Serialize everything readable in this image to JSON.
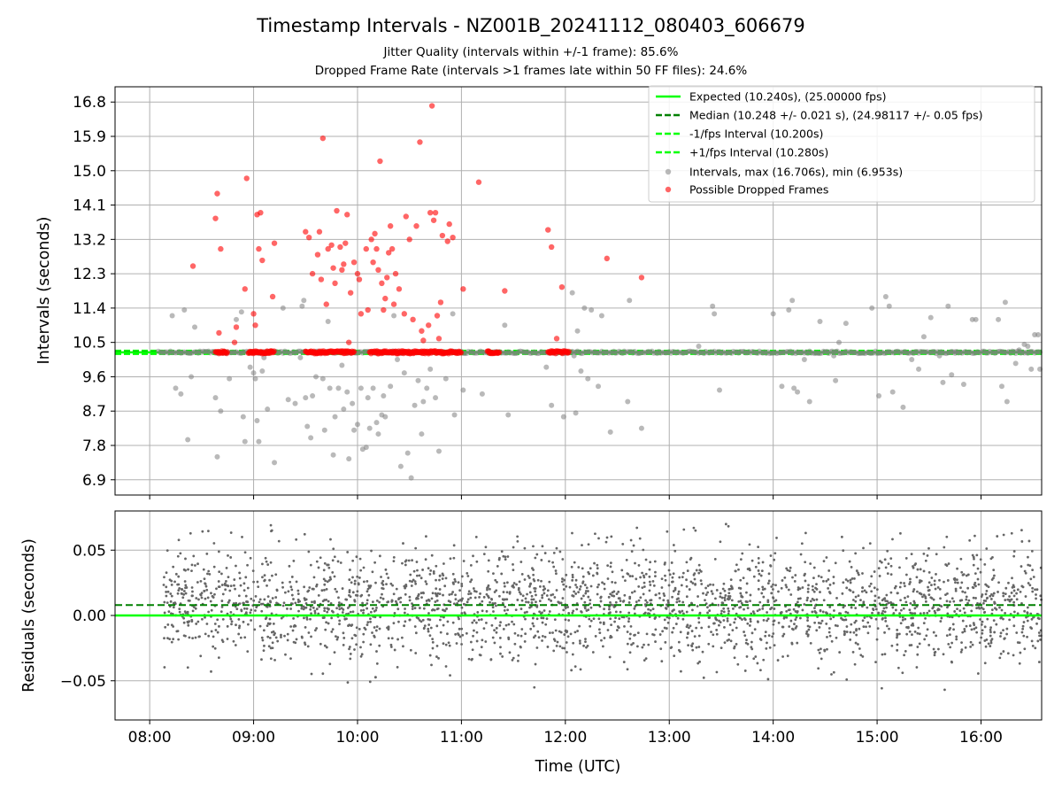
{
  "colors": {
    "expected": "#00ff00",
    "median": "#008000",
    "interval": "#00ff00",
    "points": "#808080",
    "dropped": "#ff0000",
    "grid": "#b0b0b0",
    "residual_points": "#666666"
  },
  "chart_data": [
    {
      "type": "scatter",
      "panel": "intervals",
      "title": "Timestamp Intervals - NZ001B_20241112_080403_606679",
      "subtitle_lines": [
        "Jitter Quality (intervals within +/-1 frame): 85.6%",
        "Dropped Frame Rate (intervals >1 frames late within 50 FF files): 24.6%"
      ],
      "xlabel": "",
      "ylabel": "Intervals (seconds)",
      "xlim": [
        "07:40",
        "16:35"
      ],
      "ylim": [
        6.5,
        17.2
      ],
      "yticks": [
        "6.9",
        "7.8",
        "8.7",
        "9.6",
        "10.5",
        "11.4",
        "12.3",
        "13.2",
        "14.1",
        "15.0",
        "15.9",
        "16.8"
      ],
      "grid": true,
      "legend_position": "top-right",
      "legend": [
        "Expected (10.240s), (25.00000 fps)",
        "Median (10.248 +/- 0.021 s), (24.98117 +/- 0.05 fps)",
        "-1/fps Interval (10.200s)",
        "+1/fps Interval (10.280s)",
        "Intervals, max (16.706s), min (6.953s)",
        "Possible Dropped Frames"
      ],
      "reference_lines": {
        "expected": 10.24,
        "median": 10.248,
        "minus_one": 10.2,
        "plus_one": 10.28
      },
      "baseline_band": {
        "series": "Intervals",
        "x_start": "08:05",
        "x_end": "16:35",
        "y": 10.24
      },
      "dropped_band_segments": [
        [
          "08:38",
          "08:45"
        ],
        [
          "08:57",
          "09:12"
        ],
        [
          "09:30",
          "09:58"
        ],
        [
          "10:07",
          "11:00"
        ],
        [
          "11:15",
          "11:22"
        ],
        [
          "11:50",
          "12:02"
        ]
      ],
      "series": [
        {
          "name": "Intervals, max (16.706s), min (6.953s)",
          "points": [
            [
              "08:13",
              11.2
            ],
            [
              "08:15",
              9.3
            ],
            [
              "08:18",
              9.15
            ],
            [
              "08:20",
              11.35
            ],
            [
              "08:22",
              7.95
            ],
            [
              "08:24",
              9.6
            ],
            [
              "08:26",
              10.9
            ],
            [
              "08:38",
              9.05
            ],
            [
              "08:39",
              7.5
            ],
            [
              "08:41",
              8.7
            ],
            [
              "08:46",
              9.55
            ],
            [
              "08:50",
              11.1
            ],
            [
              "08:53",
              11.3
            ],
            [
              "08:54",
              8.55
            ],
            [
              "08:55",
              7.9
            ],
            [
              "08:58",
              9.85
            ],
            [
              "09:00",
              9.7
            ],
            [
              "09:01",
              9.55
            ],
            [
              "09:02",
              8.45
            ],
            [
              "09:03",
              7.9
            ],
            [
              "09:05",
              9.75
            ],
            [
              "09:06",
              10.1
            ],
            [
              "09:08",
              8.75
            ],
            [
              "09:12",
              7.35
            ],
            [
              "09:17",
              11.4
            ],
            [
              "09:20",
              9.0
            ],
            [
              "09:24",
              8.9
            ],
            [
              "09:27",
              10.1
            ],
            [
              "09:28",
              11.45
            ],
            [
              "09:29",
              11.6
            ],
            [
              "09:30",
              9.05
            ],
            [
              "09:31",
              8.3
            ],
            [
              "09:33",
              8.0
            ],
            [
              "09:34",
              9.1
            ],
            [
              "09:36",
              9.6
            ],
            [
              "09:38",
              10.25
            ],
            [
              "09:40",
              9.55
            ],
            [
              "09:41",
              8.2
            ],
            [
              "09:43",
              11.05
            ],
            [
              "09:44",
              9.3
            ],
            [
              "09:46",
              7.55
            ],
            [
              "09:47",
              8.55
            ],
            [
              "09:49",
              9.3
            ],
            [
              "09:51",
              9.9
            ],
            [
              "09:52",
              8.75
            ],
            [
              "09:54",
              9.2
            ],
            [
              "09:55",
              7.45
            ],
            [
              "09:57",
              8.9
            ],
            [
              "09:58",
              8.2
            ],
            [
              "10:00",
              8.35
            ],
            [
              "10:02",
              9.3
            ],
            [
              "10:03",
              7.7
            ],
            [
              "10:05",
              7.75
            ],
            [
              "10:06",
              9.05
            ],
            [
              "10:07",
              8.25
            ],
            [
              "10:09",
              9.3
            ],
            [
              "10:11",
              8.4
            ],
            [
              "10:12",
              8.1
            ],
            [
              "10:14",
              8.6
            ],
            [
              "10:15",
              9.1
            ],
            [
              "10:16",
              8.55
            ],
            [
              "10:19",
              9.35
            ],
            [
              "10:21",
              11.2
            ],
            [
              "10:23",
              10.05
            ],
            [
              "10:25",
              7.25
            ],
            [
              "10:27",
              9.7
            ],
            [
              "10:29",
              7.6
            ],
            [
              "10:31",
              6.95
            ],
            [
              "10:33",
              8.85
            ],
            [
              "10:35",
              9.5
            ],
            [
              "10:37",
              8.1
            ],
            [
              "10:38",
              8.95
            ],
            [
              "10:40",
              9.3
            ],
            [
              "10:42",
              9.8
            ],
            [
              "10:45",
              9.05
            ],
            [
              "10:47",
              7.65
            ],
            [
              "10:51",
              9.55
            ],
            [
              "10:55",
              11.25
            ],
            [
              "10:56",
              8.6
            ],
            [
              "11:01",
              9.25
            ],
            [
              "11:12",
              9.15
            ],
            [
              "11:25",
              10.95
            ],
            [
              "11:27",
              8.6
            ],
            [
              "11:49",
              9.85
            ],
            [
              "11:52",
              8.85
            ],
            [
              "11:59",
              8.55
            ],
            [
              "12:04",
              11.8
            ],
            [
              "12:05",
              10.15
            ],
            [
              "12:06",
              8.65
            ],
            [
              "12:07",
              10.8
            ],
            [
              "12:09",
              9.75
            ],
            [
              "12:11",
              11.4
            ],
            [
              "12:13",
              9.55
            ],
            [
              "12:15",
              11.35
            ],
            [
              "12:19",
              9.35
            ],
            [
              "12:21",
              11.2
            ],
            [
              "12:26",
              8.15
            ],
            [
              "12:36",
              8.95
            ],
            [
              "12:37",
              11.6
            ],
            [
              "12:44",
              8.25
            ],
            [
              "13:17",
              10.4
            ],
            [
              "13:25",
              11.45
            ],
            [
              "13:26",
              11.25
            ],
            [
              "13:29",
              9.25
            ],
            [
              "14:00",
              11.25
            ],
            [
              "14:05",
              9.35
            ],
            [
              "14:09",
              11.35
            ],
            [
              "14:11",
              11.6
            ],
            [
              "14:12",
              9.3
            ],
            [
              "14:14",
              9.2
            ],
            [
              "14:18",
              10.05
            ],
            [
              "14:21",
              8.95
            ],
            [
              "14:27",
              11.05
            ],
            [
              "14:35",
              10.15
            ],
            [
              "14:36",
              9.5
            ],
            [
              "14:38",
              10.5
            ],
            [
              "14:42",
              11.0
            ],
            [
              "14:57",
              11.4
            ],
            [
              "15:01",
              9.1
            ],
            [
              "15:05",
              11.7
            ],
            [
              "15:07",
              11.45
            ],
            [
              "15:09",
              9.2
            ],
            [
              "15:15",
              8.8
            ],
            [
              "15:20",
              10.05
            ],
            [
              "15:24",
              9.8
            ],
            [
              "15:27",
              10.65
            ],
            [
              "15:31",
              11.15
            ],
            [
              "15:36",
              10.15
            ],
            [
              "15:38",
              9.45
            ],
            [
              "15:41",
              11.45
            ],
            [
              "15:43",
              9.65
            ],
            [
              "15:45",
              10.25
            ],
            [
              "15:50",
              9.4
            ],
            [
              "15:55",
              11.1
            ],
            [
              "15:57",
              11.1
            ],
            [
              "16:10",
              11.1
            ],
            [
              "16:12",
              9.35
            ],
            [
              "16:14",
              11.55
            ],
            [
              "16:15",
              8.95
            ],
            [
              "16:20",
              9.95
            ],
            [
              "16:22",
              10.3
            ],
            [
              "16:25",
              10.45
            ],
            [
              "16:27",
              10.4
            ],
            [
              "16:29",
              9.8
            ],
            [
              "16:31",
              10.7
            ],
            [
              "16:33",
              10.7
            ],
            [
              "16:34",
              9.8
            ]
          ]
        },
        {
          "name": "Possible Dropped Frames",
          "points": [
            [
              "08:25",
              12.5
            ],
            [
              "08:38",
              13.75
            ],
            [
              "08:39",
              14.4
            ],
            [
              "08:40",
              10.75
            ],
            [
              "08:41",
              12.95
            ],
            [
              "08:49",
              10.5
            ],
            [
              "08:50",
              10.9
            ],
            [
              "08:55",
              11.9
            ],
            [
              "08:56",
              14.8
            ],
            [
              "09:00",
              11.25
            ],
            [
              "09:01",
              10.95
            ],
            [
              "09:02",
              13.85
            ],
            [
              "09:03",
              12.95
            ],
            [
              "09:04",
              13.9
            ],
            [
              "09:05",
              12.65
            ],
            [
              "09:11",
              11.7
            ],
            [
              "09:12",
              13.1
            ],
            [
              "09:30",
              13.4
            ],
            [
              "09:32",
              13.25
            ],
            [
              "09:34",
              12.3
            ],
            [
              "09:37",
              12.8
            ],
            [
              "09:38",
              13.4
            ],
            [
              "09:39",
              12.15
            ],
            [
              "09:40",
              15.85
            ],
            [
              "09:42",
              11.5
            ],
            [
              "09:43",
              12.95
            ],
            [
              "09:45",
              13.05
            ],
            [
              "09:46",
              12.45
            ],
            [
              "09:47",
              12.05
            ],
            [
              "09:48",
              13.95
            ],
            [
              "09:50",
              13.0
            ],
            [
              "09:51",
              12.4
            ],
            [
              "09:52",
              12.55
            ],
            [
              "09:53",
              13.1
            ],
            [
              "09:54",
              13.85
            ],
            [
              "09:55",
              10.5
            ],
            [
              "09:56",
              11.8
            ],
            [
              "09:58",
              12.6
            ],
            [
              "10:00",
              12.3
            ],
            [
              "10:01",
              12.15
            ],
            [
              "10:02",
              11.25
            ],
            [
              "10:05",
              12.95
            ],
            [
              "10:06",
              11.35
            ],
            [
              "10:08",
              13.2
            ],
            [
              "10:09",
              12.6
            ],
            [
              "10:10",
              13.35
            ],
            [
              "10:11",
              12.95
            ],
            [
              "10:12",
              12.4
            ],
            [
              "10:13",
              15.25
            ],
            [
              "10:14",
              12.05
            ],
            [
              "10:15",
              11.35
            ],
            [
              "10:16",
              11.65
            ],
            [
              "10:17",
              12.2
            ],
            [
              "10:18",
              12.85
            ],
            [
              "10:19",
              13.55
            ],
            [
              "10:20",
              12.95
            ],
            [
              "10:21",
              11.5
            ],
            [
              "10:22",
              12.3
            ],
            [
              "10:24",
              11.9
            ],
            [
              "10:27",
              11.25
            ],
            [
              "10:28",
              13.8
            ],
            [
              "10:30",
              13.2
            ],
            [
              "10:32",
              11.1
            ],
            [
              "10:34",
              13.55
            ],
            [
              "10:36",
              15.75
            ],
            [
              "10:37",
              10.8
            ],
            [
              "10:38",
              10.55
            ],
            [
              "10:41",
              10.95
            ],
            [
              "10:42",
              13.9
            ],
            [
              "10:43",
              16.7
            ],
            [
              "10:44",
              13.7
            ],
            [
              "10:45",
              13.9
            ],
            [
              "10:46",
              11.2
            ],
            [
              "10:47",
              10.6
            ],
            [
              "10:48",
              11.55
            ],
            [
              "10:49",
              13.3
            ],
            [
              "10:52",
              13.15
            ],
            [
              "10:53",
              13.6
            ],
            [
              "10:55",
              13.25
            ],
            [
              "11:01",
              11.9
            ],
            [
              "11:10",
              14.7
            ],
            [
              "11:25",
              11.85
            ],
            [
              "11:50",
              13.45
            ],
            [
              "11:52",
              13.0
            ],
            [
              "11:55",
              10.6
            ],
            [
              "11:58",
              11.95
            ],
            [
              "12:24",
              12.7
            ],
            [
              "12:44",
              12.2
            ]
          ]
        }
      ]
    },
    {
      "type": "scatter",
      "panel": "residuals",
      "xlabel": "Time (UTC)",
      "ylabel": "Residuals (seconds)",
      "xticks": [
        "08:00",
        "09:00",
        "10:00",
        "11:00",
        "12:00",
        "13:00",
        "14:00",
        "15:00",
        "16:00"
      ],
      "xlim": [
        "07:40",
        "16:35"
      ],
      "ylim": [
        -0.08,
        0.08
      ],
      "yticks": [
        "−0.05",
        "0.00",
        "0.05"
      ],
      "reference_lines": {
        "expected": 0.0,
        "median": 0.008
      },
      "grid": true,
      "residual_cloud": {
        "x_start": "08:08",
        "x_end": "16:35",
        "mean": 0.008,
        "std": 0.021,
        "min": -0.06,
        "max": 0.07
      }
    }
  ]
}
